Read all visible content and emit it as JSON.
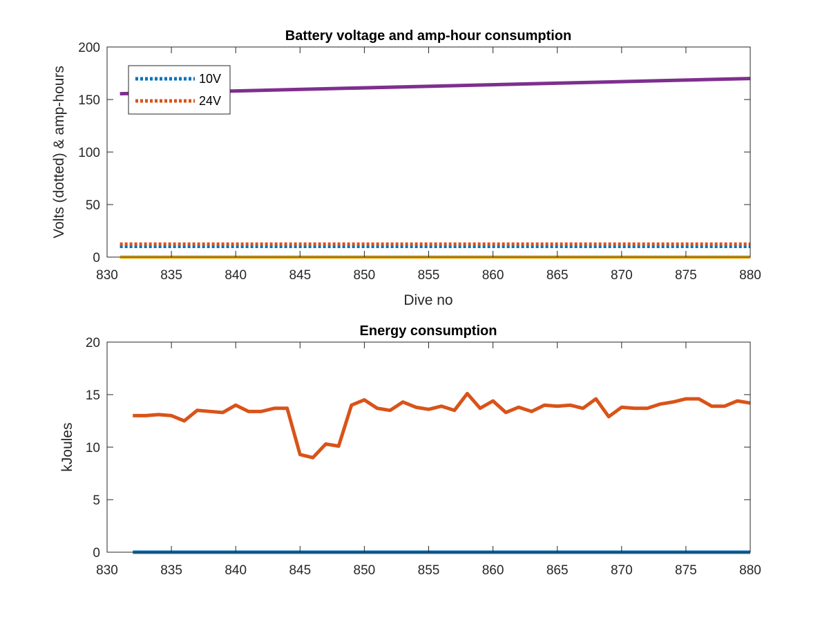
{
  "colors": {
    "background": "#ffffff",
    "axis": "#262626",
    "blue": "#0072BD",
    "orange": "#D95319",
    "yellow": "#EDB120",
    "purple": "#7E2F8E"
  },
  "chart_data": [
    {
      "type": "line",
      "title": "Battery voltage and amp-hour consumption",
      "xlabel": "Dive no",
      "ylabel": "Volts (dotted) & amp-hours",
      "xlim": [
        830,
        880
      ],
      "ylim": [
        0,
        200
      ],
      "xticks": [
        830,
        835,
        840,
        845,
        850,
        855,
        860,
        865,
        870,
        875,
        880
      ],
      "yticks": [
        0,
        50,
        100,
        150,
        200
      ],
      "grid": false,
      "legend": {
        "placement": "top-left",
        "entries": [
          "10V",
          "24V"
        ]
      },
      "series": [
        {
          "name": "10V",
          "style": "dotted",
          "color": "#0072BD",
          "x": [
            831,
            880
          ],
          "y": [
            10.2,
            10.2
          ]
        },
        {
          "name": "24V",
          "style": "dotted",
          "color": "#D95319",
          "x": [
            831,
            880
          ],
          "y": [
            12.3,
            12.3
          ]
        },
        {
          "style": "solid",
          "color": "#EDB120",
          "x": [
            831,
            880
          ],
          "y": [
            0,
            0
          ]
        },
        {
          "style": "solid",
          "color": "#7E2F8E",
          "x": [
            831,
            880
          ],
          "y": [
            155.5,
            170
          ]
        }
      ]
    },
    {
      "type": "line",
      "title": "Energy consumption",
      "xlabel": "",
      "ylabel": "kJoules",
      "xlim": [
        830,
        880
      ],
      "ylim": [
        0,
        20
      ],
      "xticks": [
        830,
        835,
        840,
        845,
        850,
        855,
        860,
        865,
        870,
        875,
        880
      ],
      "yticks": [
        0,
        5,
        10,
        15,
        20
      ],
      "grid": false,
      "series": [
        {
          "style": "solid",
          "color": "#0072BD",
          "x": [
            832,
            880
          ],
          "y": [
            0,
            0
          ]
        },
        {
          "style": "solid",
          "color": "#D95319",
          "x": [
            832,
            833,
            834,
            835,
            836,
            837,
            838,
            839,
            840,
            841,
            842,
            843,
            844,
            845,
            846,
            847,
            848,
            849,
            850,
            851,
            852,
            853,
            854,
            855,
            856,
            857,
            858,
            859,
            860,
            861,
            862,
            863,
            864,
            865,
            866,
            867,
            868,
            869,
            870,
            871,
            872,
            873,
            874,
            875,
            876,
            877,
            878,
            879,
            880
          ],
          "y": [
            13.0,
            13.0,
            13.1,
            13.0,
            12.5,
            13.5,
            13.4,
            13.3,
            14.0,
            13.4,
            13.4,
            13.7,
            13.7,
            9.3,
            9.0,
            10.3,
            10.1,
            14.0,
            14.5,
            13.7,
            13.5,
            14.3,
            13.8,
            13.6,
            13.9,
            13.5,
            15.1,
            13.7,
            14.4,
            13.3,
            13.8,
            13.4,
            14.0,
            13.9,
            14.0,
            13.7,
            14.6,
            12.9,
            13.8,
            13.7,
            13.7,
            14.1,
            14.3,
            14.6,
            14.6,
            13.9,
            13.9,
            14.4,
            14.2
          ]
        }
      ]
    }
  ]
}
